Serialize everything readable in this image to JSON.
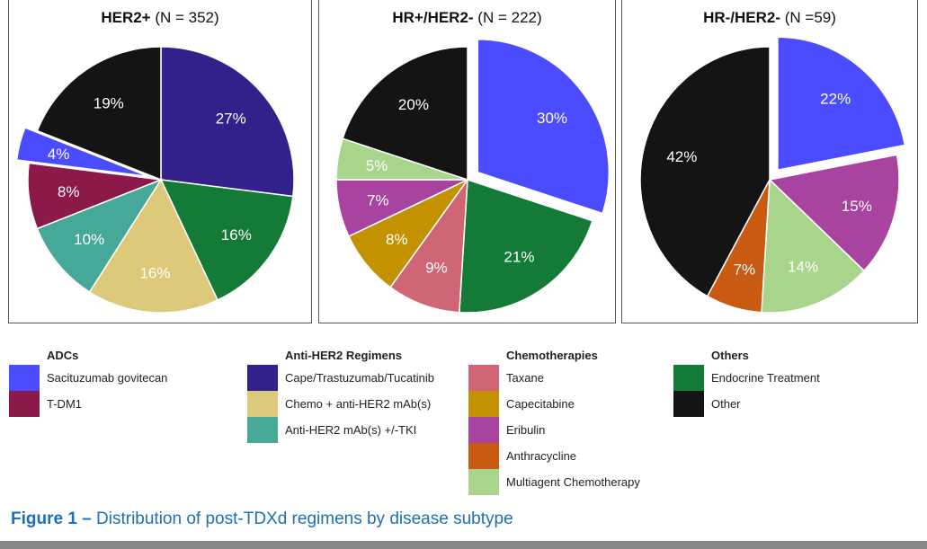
{
  "colors": {
    "Sacituzumab govitecan": "#4b4bff",
    "T-DM1": "#8b1a4b",
    "Cape/Trastuzumab/Tucatinib": "#33208a",
    "Chemo + anti-HER2 mAb(s)": "#ddc97a",
    "Anti-HER2 mAb(s) +/-TKI": "#45a898",
    "Taxane": "#d06575",
    "Capecitabine": "#c49200",
    "Eribulin": "#a843a0",
    "Anthracycline": "#c85a12",
    "Multiagent Chemotherapy": "#a8d48c",
    "Endocrine Treatment": "#137a37",
    "Other": "#141414"
  },
  "chart_data": [
    {
      "type": "pie",
      "title_bold": "HER2+",
      "title_rest": " (N = 352)",
      "slices": [
        {
          "label": "Cape/Trastuzumab/Tucatinib",
          "value": 27,
          "text": "27%"
        },
        {
          "label": "Endocrine Treatment",
          "value": 16,
          "text": "16%"
        },
        {
          "label": "Chemo + anti-HER2 mAb(s)",
          "value": 16,
          "text": "16%"
        },
        {
          "label": "Anti-HER2 mAb(s) +/-TKI",
          "value": 10,
          "text": "10%"
        },
        {
          "label": "T-DM1",
          "value": 8,
          "text": "8%"
        },
        {
          "label": "Sacituzumab govitecan",
          "value": 4,
          "text": "4%",
          "exploded": true
        },
        {
          "label": "Other",
          "value": 19,
          "text": "19%"
        }
      ]
    },
    {
      "type": "pie",
      "title_bold": "HR+/HER2-",
      "title_rest": " (N = 222)",
      "slices": [
        {
          "label": "Sacituzumab govitecan",
          "value": 30,
          "text": "30%",
          "exploded": true
        },
        {
          "label": "Endocrine Treatment",
          "value": 21,
          "text": "21%"
        },
        {
          "label": "Taxane",
          "value": 9,
          "text": "9%"
        },
        {
          "label": "Capecitabine",
          "value": 8,
          "text": "8%"
        },
        {
          "label": "Eribulin",
          "value": 7,
          "text": "7%"
        },
        {
          "label": "Multiagent Chemotherapy",
          "value": 5,
          "text": "5%"
        },
        {
          "label": "Other",
          "value": 20,
          "text": "20%"
        }
      ]
    },
    {
      "type": "pie",
      "title_bold": "HR-/HER2-",
      "title_rest": " (N =59)",
      "slices": [
        {
          "label": "Sacituzumab govitecan",
          "value": 22,
          "text": "22%",
          "exploded": true
        },
        {
          "label": "Eribulin",
          "value": 15,
          "text": "15%"
        },
        {
          "label": "Multiagent Chemotherapy",
          "value": 14,
          "text": "14%"
        },
        {
          "label": "Anthracycline",
          "value": 7,
          "text": "7%"
        },
        {
          "label": "Other",
          "value": 42,
          "text": "42%"
        }
      ]
    }
  ],
  "legend": [
    {
      "heading": "ADCs",
      "items": [
        "Sacituzumab govitecan",
        "T-DM1"
      ]
    },
    {
      "heading": "Anti-HER2 Regimens",
      "items": [
        "Cape/Trastuzumab/Tucatinib",
        "Chemo + anti-HER2 mAb(s)",
        "Anti-HER2 mAb(s) +/-TKI"
      ]
    },
    {
      "heading": "Chemotherapies",
      "items": [
        "Taxane",
        "Capecitabine",
        "Eribulin",
        "Anthracycline",
        "Multiagent Chemotherapy"
      ]
    },
    {
      "heading": "Others",
      "items": [
        "Endocrine Treatment",
        "Other"
      ]
    }
  ],
  "caption": {
    "bold": "Figure 1 –",
    "rest": " Distribution of post-TDXd regimens by disease subtype"
  }
}
